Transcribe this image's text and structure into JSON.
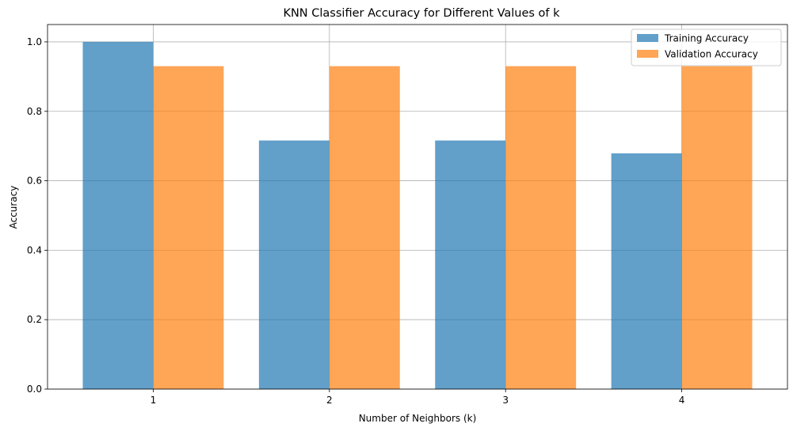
{
  "chart_data": {
    "type": "bar",
    "title": "KNN Classifier Accuracy for Different Values of k",
    "xlabel": "Number of Neighbors (k)",
    "ylabel": "Accuracy",
    "categories": [
      "1",
      "2",
      "3",
      "4"
    ],
    "ylim": [
      0,
      1.05
    ],
    "yticks": [
      "0.0",
      "0.2",
      "0.4",
      "0.6",
      "0.8",
      "1.0"
    ],
    "grid": true,
    "legend_position": "top-right",
    "series": [
      {
        "name": "Training Accuracy",
        "values": [
          1.0,
          0.716,
          0.716,
          0.679
        ],
        "color": "#1f77b4",
        "opacity": 0.7
      },
      {
        "name": "Validation Accuracy",
        "values": [
          0.93,
          0.93,
          0.93,
          0.93
        ],
        "color": "#ff7f0e",
        "opacity": 0.7
      }
    ]
  }
}
